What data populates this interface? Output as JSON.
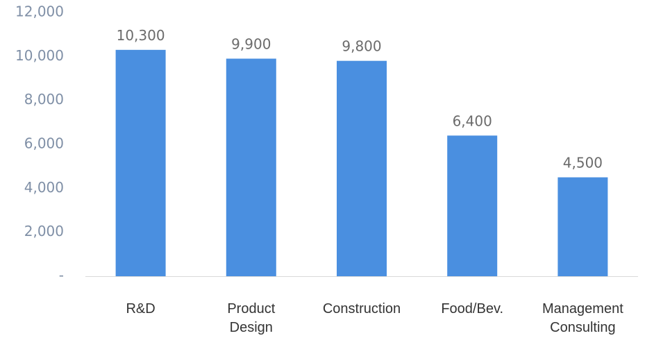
{
  "chart_data": {
    "type": "bar",
    "categories": [
      [
        "R&D"
      ],
      [
        "Product",
        "Design"
      ],
      [
        "Construction"
      ],
      [
        "Food/Bev."
      ],
      [
        "Management",
        "Consulting"
      ]
    ],
    "values": [
      10300,
      9900,
      9800,
      6400,
      4500
    ],
    "value_labels": [
      "10,300",
      "9,900",
      "9,800",
      "6,400",
      "4,500"
    ],
    "y_ticks": [
      {
        "value": 0,
        "label": "-"
      },
      {
        "value": 2000,
        "label": "2,000"
      },
      {
        "value": 4000,
        "label": "4,000"
      },
      {
        "value": 6000,
        "label": "6,000"
      },
      {
        "value": 8000,
        "label": "8,000"
      },
      {
        "value": 10000,
        "label": "10,000"
      },
      {
        "value": 12000,
        "label": "12,000"
      }
    ],
    "ylim": [
      0,
      12000
    ],
    "grid": false,
    "colors": {
      "bar": "#4a8fe0",
      "axis": "#d9d9d9"
    }
  }
}
